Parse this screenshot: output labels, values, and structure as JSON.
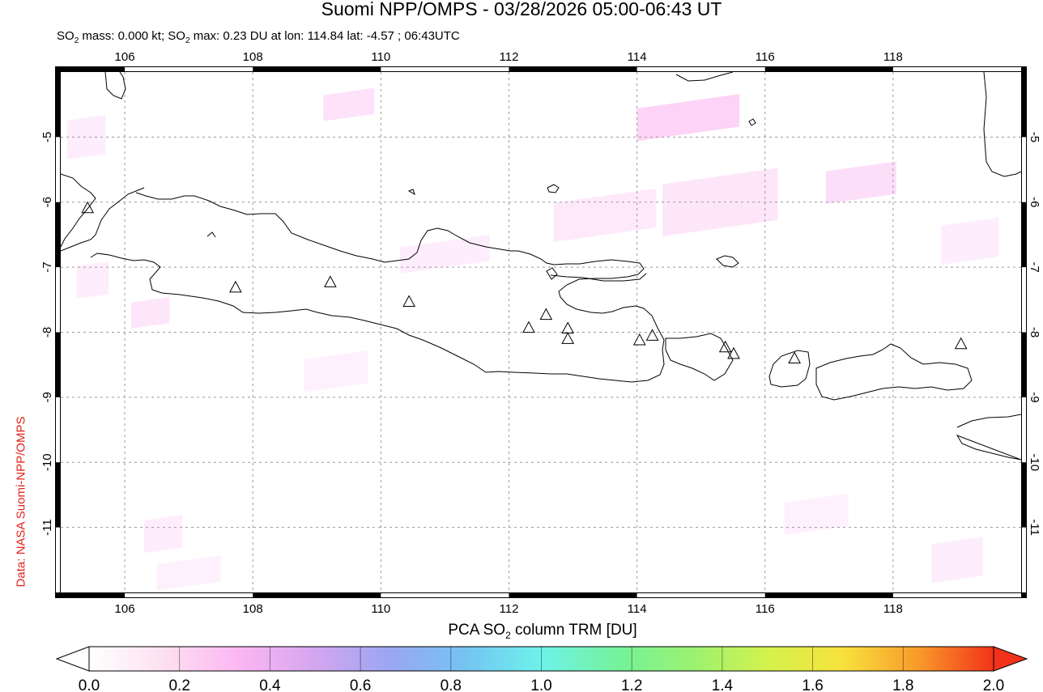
{
  "title": "Suomi NPP/OMPS - 03/28/2026 05:00-06:43 UT",
  "subtitle": {
    "prefix": "SO",
    "sub": "2",
    "mid": " mass: 0.000 kt; SO",
    "sub2": "2",
    "rest": " max: 0.23 DU at lon: 114.84 lat: -4.57 ; 06:43UTC"
  },
  "credit": "Data: NASA Suomi-NPP/OMPS",
  "map": {
    "lon_range": [
      105.0,
      120.0
    ],
    "lat_range": [
      -12.0,
      -4.0
    ],
    "lon_ticks": [
      106,
      108,
      110,
      112,
      114,
      116,
      118
    ],
    "lon_tick_labels": [
      "106",
      "108",
      "110",
      "112",
      "114",
      "116",
      "118"
    ],
    "lat_ticks": [
      -5,
      -6,
      -7,
      -8,
      -9,
      -10,
      -11
    ],
    "lat_tick_labels": [
      "-5",
      "-6",
      "-7",
      "-8",
      "-9",
      "-10",
      "-11"
    ],
    "grid": true,
    "volcanoes": [
      {
        "lon": 105.42,
        "lat": -6.1
      },
      {
        "lon": 107.73,
        "lat": -7.32
      },
      {
        "lon": 109.21,
        "lat": -7.24
      },
      {
        "lon": 110.44,
        "lat": -7.54
      },
      {
        "lon": 112.31,
        "lat": -7.94
      },
      {
        "lon": 112.58,
        "lat": -7.74
      },
      {
        "lon": 112.92,
        "lat": -7.95
      },
      {
        "lon": 112.92,
        "lat": -8.11
      },
      {
        "lon": 114.04,
        "lat": -8.13
      },
      {
        "lon": 114.24,
        "lat": -8.06
      },
      {
        "lon": 115.38,
        "lat": -8.24
      },
      {
        "lon": 115.51,
        "lat": -8.34
      },
      {
        "lon": 116.46,
        "lat": -8.41
      },
      {
        "lon": 119.06,
        "lat": -8.19
      }
    ],
    "so2_patches": [
      {
        "lon": 109.5,
        "lat": -4.5,
        "w": 0.8,
        "h": 0.4,
        "v": 0.08
      },
      {
        "lon": 114.8,
        "lat": -4.7,
        "w": 1.6,
        "h": 0.5,
        "v": 0.12
      },
      {
        "lon": 113.5,
        "lat": -6.2,
        "w": 1.6,
        "h": 0.6,
        "v": 0.06
      },
      {
        "lon": 115.3,
        "lat": -6.0,
        "w": 1.8,
        "h": 0.8,
        "v": 0.07
      },
      {
        "lon": 117.5,
        "lat": -5.7,
        "w": 1.1,
        "h": 0.5,
        "v": 0.09
      },
      {
        "lon": 111.0,
        "lat": -6.8,
        "w": 1.4,
        "h": 0.4,
        "v": 0.05
      },
      {
        "lon": 106.4,
        "lat": -7.7,
        "w": 0.6,
        "h": 0.4,
        "v": 0.07
      },
      {
        "lon": 105.5,
        "lat": -7.2,
        "w": 0.5,
        "h": 0.5,
        "v": 0.05
      },
      {
        "lon": 109.3,
        "lat": -8.6,
        "w": 1.0,
        "h": 0.5,
        "v": 0.04
      },
      {
        "lon": 106.6,
        "lat": -11.1,
        "w": 0.6,
        "h": 0.5,
        "v": 0.05
      },
      {
        "lon": 107.0,
        "lat": -11.7,
        "w": 1.0,
        "h": 0.4,
        "v": 0.04
      },
      {
        "lon": 119.2,
        "lat": -6.6,
        "w": 0.9,
        "h": 0.6,
        "v": 0.05
      },
      {
        "lon": 119.0,
        "lat": -11.5,
        "w": 0.8,
        "h": 0.6,
        "v": 0.05
      },
      {
        "lon": 116.8,
        "lat": -10.8,
        "w": 1.0,
        "h": 0.5,
        "v": 0.04
      },
      {
        "lon": 105.4,
        "lat": -5.0,
        "w": 0.6,
        "h": 0.6,
        "v": 0.05
      }
    ]
  },
  "colorbar": {
    "label_pre": "PCA SO",
    "label_sub": "2",
    "label_post": " column TRM [DU]",
    "min": 0.0,
    "max": 2.0,
    "tick_values": [
      0.0,
      0.2,
      0.4,
      0.6,
      0.8,
      1.0,
      1.2,
      1.4,
      1.6,
      1.8,
      2.0
    ],
    "tick_labels": [
      "0.0",
      "0.2",
      "0.4",
      "0.6",
      "0.8",
      "1.0",
      "1.2",
      "1.4",
      "1.6",
      "1.8",
      "2.0"
    ],
    "colors": [
      "#ffffff",
      "#fde0f0",
      "#fbb6f2",
      "#d4a6f0",
      "#9aa6f2",
      "#74c4f2",
      "#6ef2ea",
      "#74f29c",
      "#9af270",
      "#d4f24e",
      "#f8e23c",
      "#f89a2a",
      "#f2321a"
    ]
  },
  "colors": {
    "credit": "#e2231a",
    "coast": "#000000",
    "grid": "#9a9a9a"
  }
}
